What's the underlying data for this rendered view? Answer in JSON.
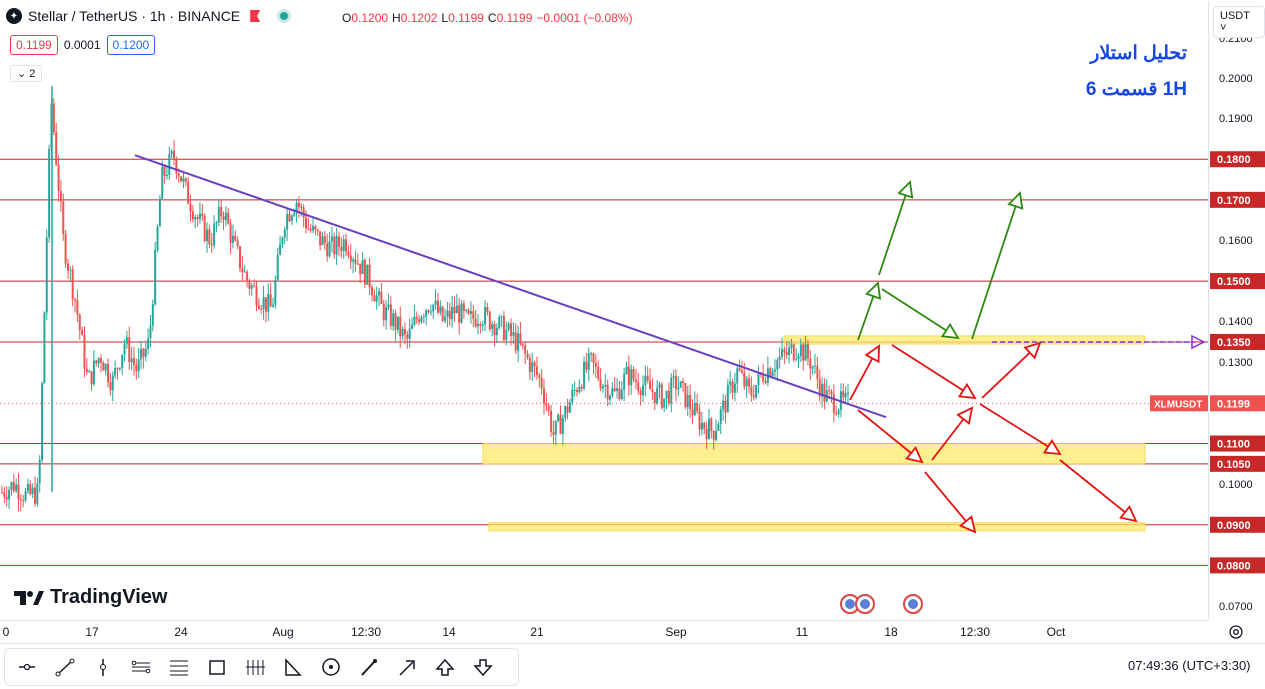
{
  "header": {
    "symbol_title": "Stellar / TetherUS · 1h · BINANCE",
    "ohlc": {
      "o_label": "O",
      "o": "0.1200",
      "h_label": "H",
      "h": "0.1202",
      "l_label": "L",
      "l": "0.1199",
      "c_label": "C",
      "c": "0.1199",
      "change": "−0.0001 (−0.08%)"
    },
    "bid": "0.1199",
    "spread": "0.0001",
    "ask": "0.1200",
    "indicator_count": "2"
  },
  "currency_button": "USDT ˅",
  "annotation": {
    "line1": "تحلیل استلار",
    "line2": "1H    قسمت 6"
  },
  "price_scale": {
    "ticks": [
      "0.2100",
      "0.2000",
      "0.1900",
      "0.1600",
      "0.1400",
      "0.1300",
      "0.1000",
      "0.0700"
    ],
    "level_labels": [
      "0.1800",
      "0.1700",
      "0.1500",
      "0.1350",
      "0.1100",
      "0.1050",
      "0.0900",
      "0.0800"
    ],
    "symbol_label": "XLMUSDT",
    "current_price": "0.1199"
  },
  "time_scale": {
    "labels": [
      "0",
      "17",
      "24",
      "Aug",
      "12:30",
      "14",
      "21",
      "Sep",
      "11",
      "18",
      "12:30",
      "Oct"
    ]
  },
  "branding": {
    "logo_text": "TradingView"
  },
  "toolbar": {
    "tools": [
      "horizontal-ray",
      "trend-line",
      "vertical-line",
      "parallel-channel",
      "fib-retracement",
      "rectangle",
      "long-position",
      "triangle-pattern",
      "circle",
      "brush",
      "arrow",
      "arrow-mark-up",
      "arrow-mark-down"
    ]
  },
  "clock": {
    "time": "07:49:36",
    "timezone": "(UTC+3:30)"
  },
  "colors": {
    "up": "#26a69a",
    "down": "#ef5350",
    "level_line": "#c62828",
    "trend_line": "#6a3fc1",
    "zone": "#fdea6c",
    "arrow_green": "#2a8a10",
    "arrow_red": "#e81010",
    "annotation_blue": "#1848e0"
  },
  "chart_data": {
    "type": "candlestick",
    "price_range": [
      0.07,
      0.21
    ],
    "horizontal_levels": [
      0.18,
      0.17,
      0.15,
      0.135,
      0.11,
      0.105,
      0.09,
      0.08
    ],
    "current_price": 0.1199,
    "trend_line": {
      "from_price": 0.181,
      "to_price": 0.1165
    },
    "zones": [
      {
        "low": 0.105,
        "high": 0.11
      },
      {
        "low": 0.0885,
        "high": 0.0905
      },
      {
        "low": 0.1345,
        "high": 0.1365
      }
    ],
    "close_path": [
      0.098,
      0.1,
      0.097,
      0.098,
      0.195,
      0.16,
      0.145,
      0.125,
      0.132,
      0.125,
      0.135,
      0.128,
      0.135,
      0.175,
      0.181,
      0.172,
      0.165,
      0.16,
      0.168,
      0.158,
      0.15,
      0.146,
      0.143,
      0.165,
      0.17,
      0.163,
      0.16,
      0.158,
      0.16,
      0.155,
      0.15,
      0.143,
      0.14,
      0.135,
      0.142,
      0.145,
      0.14,
      0.143,
      0.14,
      0.142,
      0.14,
      0.138,
      0.135,
      0.13,
      0.125,
      0.112,
      0.118,
      0.125,
      0.13,
      0.125,
      0.122,
      0.127,
      0.125,
      0.123,
      0.121,
      0.125,
      0.12,
      0.115,
      0.113,
      0.12,
      0.128,
      0.122,
      0.127,
      0.13,
      0.132,
      0.134,
      0.13,
      0.122,
      0.12,
      0.1199
    ]
  }
}
